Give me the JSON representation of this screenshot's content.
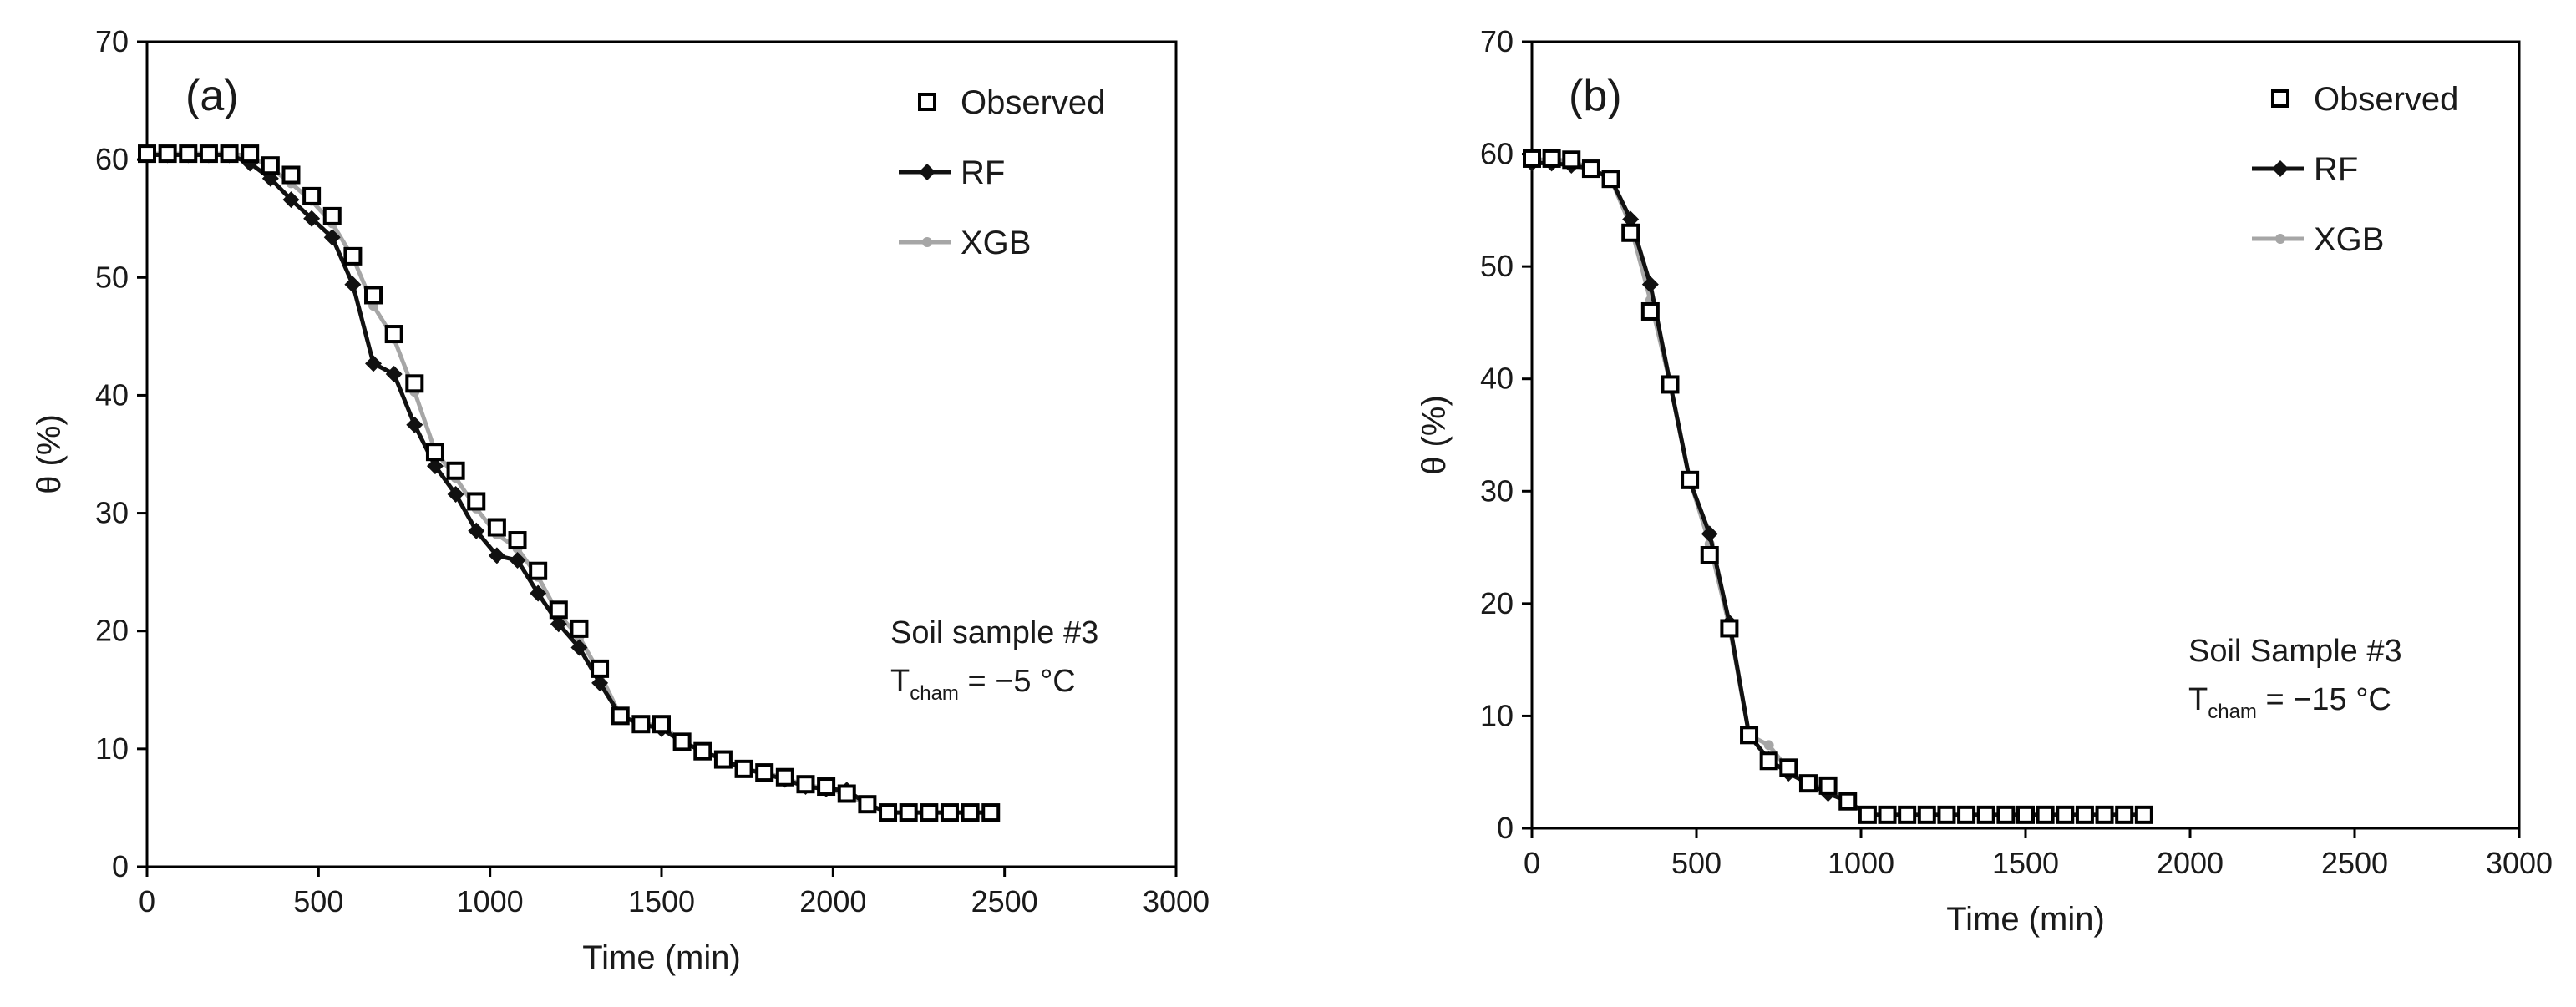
{
  "chart_data": [
    {
      "type": "line",
      "panel_label": "(a)",
      "xlabel": "Time (min)",
      "ylabel": "θ (%)",
      "xlim": [
        0,
        3000
      ],
      "ylim": [
        0,
        70
      ],
      "xticks": [
        0,
        500,
        1000,
        1500,
        2000,
        2500,
        3000
      ],
      "yticks": [
        0,
        10,
        20,
        30,
        40,
        50,
        60,
        70
      ],
      "legend": [
        "Observed",
        "RF",
        "XGB"
      ],
      "legend_position": "top-right",
      "annotation": {
        "line1": "Soil sample #3",
        "t_main": "T",
        "t_sub": "cham",
        "t_value": " = −5 °C"
      },
      "series": [
        {
          "name": "Observed",
          "style": "open-square",
          "x": [
            0,
            60,
            120,
            180,
            240,
            300,
            360,
            420,
            480,
            540,
            600,
            660,
            720,
            780,
            840,
            900,
            960,
            1020,
            1080,
            1140,
            1200,
            1260,
            1320,
            1380,
            1440,
            1500,
            1560,
            1620,
            1680,
            1740,
            1800,
            1860,
            1920,
            1980,
            2040,
            2100,
            2160,
            2220,
            2280,
            2340,
            2400,
            2460
          ],
          "y": [
            60.5,
            60.5,
            60.5,
            60.5,
            60.5,
            60.5,
            59.5,
            58.7,
            56.9,
            55.2,
            51.8,
            48.5,
            45.2,
            41.0,
            35.2,
            33.6,
            31.0,
            28.8,
            27.7,
            25.1,
            21.8,
            20.2,
            16.8,
            12.8,
            12.1,
            12.1,
            10.6,
            9.8,
            9.1,
            8.3,
            8.0,
            7.6,
            7.0,
            6.8,
            6.2,
            5.3,
            4.6,
            4.6,
            4.6,
            4.6,
            4.6,
            4.6
          ]
        },
        {
          "name": "RF",
          "style": "black-diamond-line",
          "x": [
            0,
            60,
            120,
            180,
            240,
            300,
            360,
            420,
            480,
            540,
            600,
            660,
            720,
            780,
            840,
            900,
            960,
            1020,
            1080,
            1140,
            1200,
            1260,
            1320,
            1380,
            1440,
            1500,
            1560,
            1620,
            1680,
            1740,
            1800,
            1860,
            1920,
            1980,
            2040,
            2100,
            2160,
            2220,
            2280,
            2340,
            2400,
            2460
          ],
          "y": [
            60.4,
            60.4,
            60.4,
            60.4,
            60.4,
            59.7,
            58.4,
            56.6,
            55.0,
            53.4,
            49.4,
            42.7,
            41.8,
            37.5,
            34.0,
            31.6,
            28.5,
            26.4,
            26.0,
            23.2,
            20.6,
            18.6,
            15.6,
            12.8,
            12.1,
            11.7,
            10.6,
            9.8,
            9.1,
            8.3,
            7.9,
            7.4,
            6.8,
            6.6,
            6.5,
            5.3,
            4.6,
            4.6,
            4.6,
            4.6,
            4.6,
            4.6
          ]
        },
        {
          "name": "XGB",
          "style": "gray-dot-line",
          "x": [
            0,
            60,
            120,
            180,
            240,
            300,
            360,
            420,
            480,
            540,
            600,
            660,
            720,
            780,
            840,
            900,
            960,
            1020,
            1080,
            1140,
            1200,
            1260,
            1320,
            1380,
            1440,
            1500,
            1560,
            1620,
            1680,
            1740,
            1800,
            1860,
            1920,
            1980,
            2040,
            2100,
            2160,
            2220,
            2280,
            2340,
            2400,
            2460
          ],
          "y": [
            60.5,
            60.5,
            60.5,
            60.5,
            60.5,
            60.3,
            59.3,
            58.0,
            56.5,
            54.6,
            51.7,
            47.6,
            44.8,
            40.3,
            35.3,
            33.0,
            30.4,
            28.2,
            27.0,
            24.6,
            21.4,
            19.5,
            16.4,
            12.8,
            12.1,
            12.0,
            10.6,
            9.8,
            9.1,
            8.3,
            8.0,
            7.5,
            6.9,
            6.7,
            6.1,
            5.3,
            4.6,
            4.6,
            4.6,
            4.6,
            4.6,
            4.6
          ]
        }
      ]
    },
    {
      "type": "line",
      "panel_label": "(b)",
      "xlabel": "Time (min)",
      "ylabel": "θ (%)",
      "xlim": [
        0,
        3000
      ],
      "ylim": [
        0,
        70
      ],
      "xticks": [
        0,
        500,
        1000,
        1500,
        2000,
        2500,
        3000
      ],
      "yticks": [
        0,
        10,
        20,
        30,
        40,
        50,
        60,
        70
      ],
      "legend": [
        "Observed",
        "RF",
        "XGB"
      ],
      "legend_position": "top-right",
      "annotation": {
        "line1": "Soil Sample #3",
        "t_main": "T",
        "t_sub": "cham",
        "t_value": " = −15 °C"
      },
      "series": [
        {
          "name": "Observed",
          "style": "open-square",
          "x": [
            0,
            60,
            120,
            180,
            240,
            300,
            360,
            420,
            480,
            540,
            600,
            660,
            720,
            780,
            840,
            900,
            960,
            1020,
            1080,
            1140,
            1200,
            1260,
            1320,
            1380,
            1440,
            1500,
            1560,
            1620,
            1680,
            1740,
            1800,
            1860
          ],
          "y": [
            59.6,
            59.6,
            59.5,
            58.7,
            57.8,
            53.0,
            46.0,
            39.5,
            31.0,
            24.3,
            17.8,
            8.3,
            6.0,
            5.4,
            4.0,
            3.8,
            2.4,
            1.2,
            1.2,
            1.2,
            1.2,
            1.2,
            1.2,
            1.2,
            1.2,
            1.2,
            1.2,
            1.2,
            1.2,
            1.2,
            1.2,
            1.2
          ]
        },
        {
          "name": "RF",
          "style": "black-diamond-line",
          "x": [
            0,
            60,
            120,
            180,
            240,
            300,
            360,
            420,
            480,
            540,
            600,
            660,
            720,
            780,
            840,
            900,
            960,
            1020,
            1080,
            1140,
            1200,
            1260,
            1320,
            1380,
            1440,
            1500,
            1560,
            1620,
            1680,
            1740,
            1800,
            1860
          ],
          "y": [
            59.2,
            59.2,
            59.0,
            58.7,
            57.8,
            54.2,
            48.4,
            39.6,
            30.9,
            26.2,
            18.3,
            8.3,
            6.1,
            4.9,
            4.0,
            3.1,
            2.4,
            1.2,
            1.2,
            1.2,
            1.2,
            1.2,
            1.2,
            1.2,
            1.2,
            1.2,
            1.2,
            1.2,
            1.2,
            1.2,
            1.2,
            1.2
          ]
        },
        {
          "name": "XGB",
          "style": "gray-dot-line",
          "x": [
            0,
            60,
            120,
            180,
            240,
            300,
            360,
            420,
            480,
            540,
            600,
            660,
            720,
            780,
            840,
            900,
            960,
            1020,
            1080,
            1140,
            1200,
            1260,
            1320,
            1380,
            1440,
            1500,
            1560,
            1620,
            1680,
            1740,
            1800,
            1860
          ],
          "y": [
            59.5,
            59.5,
            59.4,
            58.7,
            57.8,
            53.6,
            47.0,
            39.6,
            31.0,
            25.3,
            18.0,
            8.3,
            7.4,
            5.2,
            4.0,
            3.4,
            2.4,
            1.2,
            1.2,
            1.2,
            1.2,
            1.2,
            1.2,
            1.2,
            1.2,
            1.2,
            1.2,
            1.2,
            1.2,
            1.2,
            1.2,
            1.2
          ]
        }
      ]
    }
  ]
}
